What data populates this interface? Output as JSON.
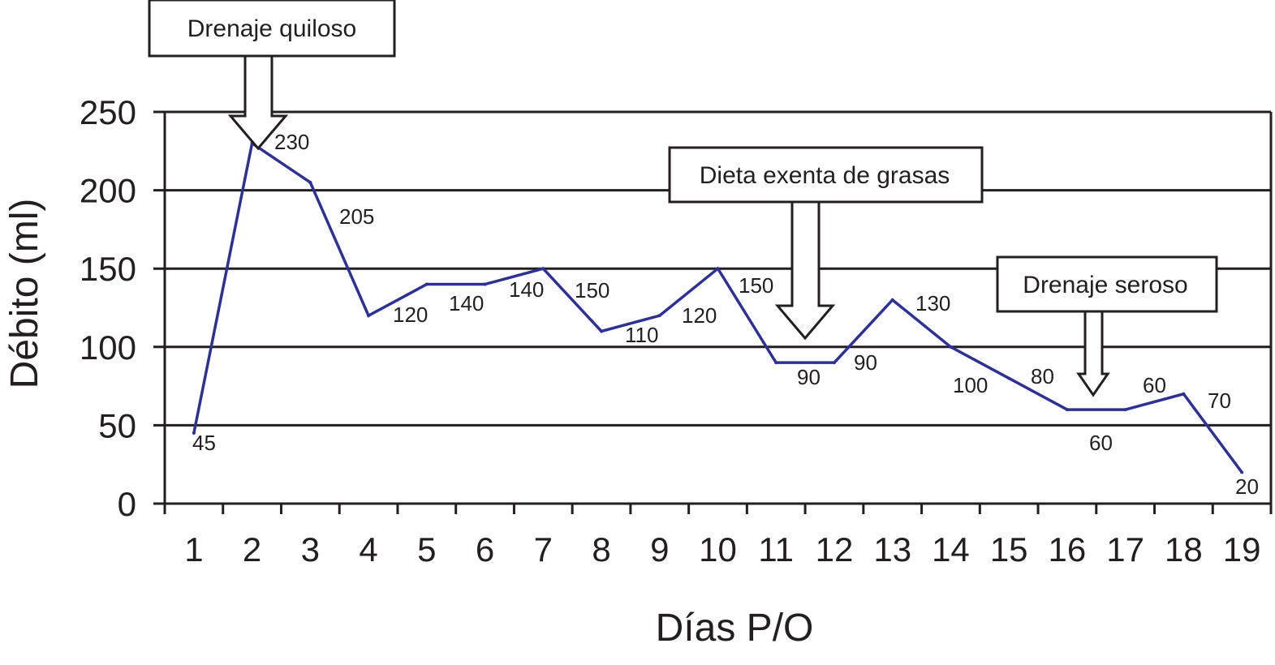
{
  "chart_data": {
    "type": "line",
    "xlabel": "Días P/O",
    "ylabel": "Débito (ml)",
    "categories": [
      "1",
      "2",
      "3",
      "4",
      "5",
      "6",
      "7",
      "8",
      "9",
      "10",
      "11",
      "12",
      "13",
      "14",
      "15",
      "16",
      "17",
      "18",
      "19"
    ],
    "values": [
      45,
      230,
      205,
      120,
      140,
      140,
      150,
      110,
      120,
      150,
      90,
      90,
      130,
      100,
      80,
      60,
      60,
      70,
      20
    ],
    "data_labels": [
      "45",
      "230",
      "205",
      "120",
      "140",
      "140",
      "150",
      "110",
      "120",
      "150",
      "90",
      "90",
      "130",
      "100",
      "80",
      "60",
      "60",
      "70",
      "20"
    ],
    "yticks": [
      "0",
      "50",
      "100",
      "150",
      "200",
      "250"
    ],
    "ylim": [
      0,
      250
    ],
    "grid": true,
    "line_color": "#2e3192",
    "annotations": [
      {
        "text": "Drenaje quiloso",
        "day": 2
      },
      {
        "text": "Dieta exenta de grasas",
        "day": 11.5
      },
      {
        "text": "Drenaje seroso",
        "day": 16.5
      }
    ]
  }
}
